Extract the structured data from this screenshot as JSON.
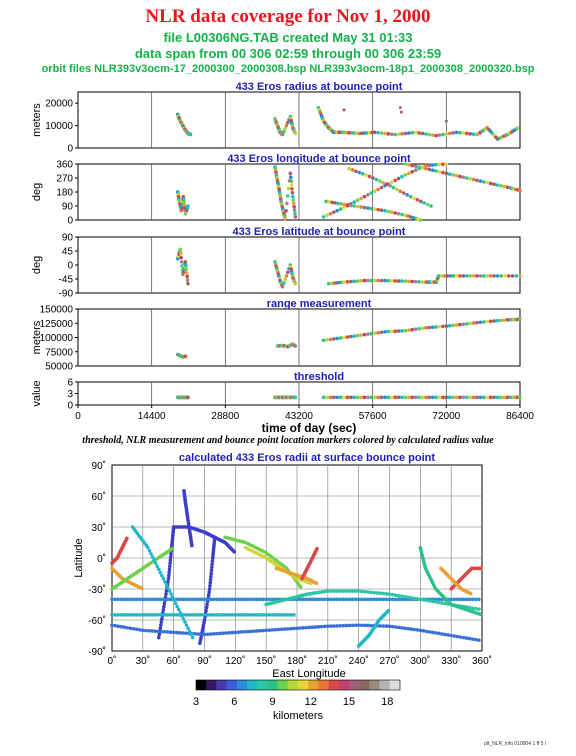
{
  "header": {
    "title": "NLR data coverage for Nov 1, 2000",
    "file_line": "file L00306NG.TAB created May 31 01:33",
    "span_line": "data span from 00 306 02:59 through 00 306 23:59",
    "orbit_line": "orbit files NLR393v3ocm-17_2000300_2000308.bsp NLR393v3ocm-18p1_2000308_2000320.bsp"
  },
  "caption": "threshold, NLR measurement and bounce point location markers colored by calculated radius value",
  "footer": "plt_NLR_info 010904 1 ff 5 l",
  "colors": {
    "title": "#e8141e",
    "subtitle": "#15b04a",
    "panel_title": "#1f1fb4"
  },
  "chart_data": [
    {
      "id": "radius",
      "type": "scatter",
      "title": "433 Eros radius at bounce point",
      "ylabel": "meters",
      "xlim": [
        0,
        86400
      ],
      "ylim": [
        0,
        25000
      ],
      "yticks": [
        "0",
        "10000",
        "20000"
      ],
      "ytick_values": [
        0,
        10000,
        20000
      ],
      "series": [
        {
          "x": [
            19500,
            20000,
            20500,
            21000,
            21500,
            22000
          ],
          "y": [
            15000,
            12000,
            10000,
            8000,
            6500,
            6000
          ]
        },
        {
          "x": [
            38500,
            39000,
            39500,
            40000,
            41500,
            42000,
            42500
          ],
          "y": [
            13000,
            10000,
            7000,
            6000,
            14000,
            9000,
            6500
          ]
        },
        {
          "x": [
            47000,
            48000,
            49000,
            50000,
            52000,
            55000,
            58000,
            62000,
            66000,
            70000,
            74000,
            78000,
            80000,
            82000,
            84000,
            86000
          ],
          "y": [
            18000,
            12000,
            9000,
            7000,
            7000,
            6500,
            7000,
            6000,
            7000,
            5500,
            7000,
            6000,
            9000,
            4000,
            6000,
            9000
          ]
        }
      ],
      "outliers": [
        {
          "x": 63000,
          "y": 18000
        },
        {
          "x": 63200,
          "y": 16000
        },
        {
          "x": 72000,
          "y": 12000
        },
        {
          "x": 52000,
          "y": 17000
        }
      ]
    },
    {
      "id": "longitude",
      "type": "scatter",
      "title": "433 Eros longitude at bounce point",
      "ylabel": "deg",
      "xlim": [
        0,
        86400
      ],
      "ylim": [
        0,
        360
      ],
      "yticks": [
        "0",
        "90",
        "180",
        "270",
        "360"
      ],
      "ytick_values": [
        0,
        90,
        180,
        270,
        360
      ],
      "series": [
        {
          "x": [
            19500,
            19800,
            20200,
            20600,
            21000,
            21500
          ],
          "y": [
            180,
            120,
            60,
            150,
            40,
            90
          ]
        },
        {
          "x": [
            38500,
            38900,
            39300,
            39700,
            40100,
            40500,
            41500,
            42000,
            42500
          ],
          "y": [
            340,
            270,
            200,
            120,
            60,
            10,
            300,
            150,
            20
          ]
        },
        {
          "x": [
            48000,
            52000,
            56000,
            60000,
            64000,
            68000,
            72000
          ],
          "y": [
            20,
            80,
            150,
            220,
            290,
            350,
            360
          ]
        },
        {
          "x": [
            48500,
            52000,
            56000,
            60000,
            64000,
            67000
          ],
          "y": [
            120,
            100,
            80,
            60,
            30,
            0
          ]
        },
        {
          "x": [
            64000,
            68000,
            72000,
            76000,
            80000,
            84000,
            86400
          ],
          "y": [
            360,
            330,
            300,
            270,
            240,
            210,
            190
          ]
        },
        {
          "x": [
            53000,
            57000,
            61000,
            65000,
            69000
          ],
          "y": [
            330,
            280,
            220,
            150,
            90
          ]
        }
      ]
    },
    {
      "id": "latitude",
      "type": "scatter",
      "title": "433 Eros latitude at bounce point",
      "ylabel": "deg",
      "xlim": [
        0,
        86400
      ],
      "ylim": [
        -90,
        90
      ],
      "yticks": [
        "-90",
        "-45",
        "0",
        "45",
        "90"
      ],
      "ytick_values": [
        -90,
        -45,
        0,
        45,
        90
      ],
      "series": [
        {
          "x": [
            19500,
            20000,
            20500,
            21000,
            21500
          ],
          "y": [
            20,
            50,
            -30,
            10,
            -60
          ]
        },
        {
          "x": [
            38500,
            39000,
            39500,
            40000,
            41500,
            42000,
            42500
          ],
          "y": [
            10,
            -20,
            -50,
            -70,
            0,
            -40,
            -60
          ]
        },
        {
          "x": [
            49000,
            52000,
            56000,
            60000,
            64000,
            68000,
            70000,
            70500,
            74000,
            78000,
            82000,
            86400
          ],
          "y": [
            -60,
            -55,
            -50,
            -50,
            -52,
            -55,
            -55,
            -35,
            -35,
            -35,
            -35,
            -35
          ]
        }
      ]
    },
    {
      "id": "range",
      "type": "scatter",
      "title": "range measurement",
      "ylabel": "meters",
      "xlim": [
        0,
        86400
      ],
      "ylim": [
        50000,
        150000
      ],
      "yticks": [
        "50000",
        "75000",
        "100000",
        "125000",
        "150000"
      ],
      "ytick_values": [
        50000,
        75000,
        100000,
        125000,
        150000
      ],
      "series": [
        {
          "x": [
            19500,
            20000,
            20500,
            21000
          ],
          "y": [
            70000,
            68000,
            66000,
            67000
          ]
        },
        {
          "x": [
            39000,
            40000,
            41000,
            42000,
            42500
          ],
          "y": [
            85000,
            86000,
            84000,
            88000,
            85000
          ]
        },
        {
          "x": [
            48000,
            52000,
            56000,
            60000,
            64000,
            68000,
            72000,
            76000,
            80000,
            84000,
            86400
          ],
          "y": [
            95000,
            100000,
            105000,
            110000,
            112000,
            117000,
            120000,
            124000,
            128000,
            131000,
            132000
          ]
        }
      ]
    },
    {
      "id": "threshold",
      "type": "scatter",
      "title": "threshold",
      "ylabel": "value",
      "xlabel": "time of day (sec)",
      "xlim": [
        0,
        86400
      ],
      "ylim": [
        0,
        6
      ],
      "yticks": [
        "0",
        "3",
        "6"
      ],
      "ytick_values": [
        0,
        3,
        6
      ],
      "xticks": [
        "0",
        "14400",
        "28800",
        "43200",
        "57600",
        "72000",
        "86400"
      ],
      "xtick_values": [
        0,
        14400,
        28800,
        43200,
        57600,
        72000,
        86400
      ],
      "series": [
        {
          "x": [
            19500,
            20000,
            20500,
            21000,
            21500
          ],
          "y": [
            2,
            2,
            2,
            2,
            2
          ]
        },
        {
          "x": [
            38500,
            39000,
            40000,
            41000,
            42000,
            42500
          ],
          "y": [
            2,
            2,
            2,
            2,
            2,
            2
          ]
        },
        {
          "x": [
            48000,
            52000,
            56000,
            60000,
            64000,
            68000,
            72000,
            76000,
            80000,
            84000,
            86400
          ],
          "y": [
            2,
            2,
            2,
            2,
            2,
            2,
            2,
            2,
            2,
            2,
            2
          ]
        }
      ]
    },
    {
      "id": "map",
      "type": "scatter",
      "title": "calculated 433 Eros radii at surface bounce point",
      "xlabel": "East Longitude",
      "ylabel": "Latitude",
      "xlim": [
        0,
        360
      ],
      "ylim": [
        -90,
        90
      ],
      "xticks": [
        "0˚",
        "30˚",
        "60˚",
        "90˚",
        "120˚",
        "150˚",
        "180˚",
        "210˚",
        "240˚",
        "270˚",
        "300˚",
        "330˚",
        "360˚"
      ],
      "xtick_values": [
        0,
        30,
        60,
        90,
        120,
        150,
        180,
        210,
        240,
        270,
        300,
        330,
        360
      ],
      "yticks": [
        "-90˚",
        "-60˚",
        "-30˚",
        "0˚",
        "30˚",
        "60˚",
        "90˚"
      ],
      "ytick_values": [
        -90,
        -60,
        -30,
        0,
        30,
        60,
        90
      ],
      "tracks": [
        {
          "color": "#3a3ec8",
          "x": [
            60,
            75,
            90,
            100,
            110,
            120
          ],
          "y": [
            30,
            30,
            25,
            20,
            15,
            5
          ]
        },
        {
          "color": "#3a3ec8",
          "x": [
            60,
            58,
            55,
            50,
            45
          ],
          "y": [
            30,
            10,
            -20,
            -50,
            -80
          ]
        },
        {
          "color": "#3a3ec8",
          "x": [
            100,
            98,
            95,
            90,
            85
          ],
          "y": [
            20,
            0,
            -30,
            -60,
            -85
          ]
        },
        {
          "color": "#2f8bd6",
          "x": [
            0,
            30,
            60,
            90,
            120,
            150,
            180,
            210,
            240,
            270,
            300,
            330,
            360
          ],
          "y": [
            -40,
            -40,
            -40,
            -40,
            -40,
            -40,
            -40,
            -40,
            -40,
            -40,
            -40,
            -40,
            -40
          ]
        },
        {
          "color": "#22b7c9",
          "x": [
            0,
            30,
            60,
            90,
            120,
            150,
            180
          ],
          "y": [
            -55,
            -55,
            -55,
            -55,
            -55,
            -55,
            -55
          ]
        },
        {
          "color": "#3a6fd8",
          "x": [
            0,
            30,
            60,
            90,
            120,
            150,
            180,
            210,
            240,
            270,
            300,
            330,
            360
          ],
          "y": [
            -65,
            -70,
            -72,
            -74,
            -72,
            -70,
            -68,
            -66,
            -65,
            -66,
            -70,
            -75,
            -80
          ]
        },
        {
          "color": "#2bc6a4",
          "x": [
            150,
            170,
            190,
            210,
            240,
            270,
            300,
            330,
            360
          ],
          "y": [
            -45,
            -40,
            -35,
            -32,
            -32,
            -35,
            -40,
            -45,
            -50
          ]
        },
        {
          "color": "#6dd14d",
          "x": [
            110,
            130,
            150,
            170,
            185
          ],
          "y": [
            20,
            15,
            5,
            -10,
            -30
          ]
        },
        {
          "color": "#d6d23a",
          "x": [
            130,
            150,
            165,
            180,
            195
          ],
          "y": [
            10,
            0,
            -10,
            -20,
            -25
          ]
        },
        {
          "color": "#e6a235",
          "x": [
            160,
            175,
            190,
            200
          ],
          "y": [
            -10,
            -15,
            -20,
            -25
          ]
        },
        {
          "color": "#d84a4a",
          "x": [
            185,
            190,
            195,
            200
          ],
          "y": [
            -20,
            -10,
            0,
            10
          ]
        },
        {
          "color": "#d84a4a",
          "x": [
            330,
            340,
            350,
            360
          ],
          "y": [
            -30,
            -20,
            -10,
            -10
          ]
        },
        {
          "color": "#e6a235",
          "x": [
            320,
            330,
            340,
            350
          ],
          "y": [
            -10,
            -20,
            -30,
            -35
          ]
        },
        {
          "color": "#2fc08a",
          "x": [
            300,
            305,
            315,
            330,
            345,
            360
          ],
          "y": [
            10,
            -10,
            -30,
            -45,
            -50,
            -55
          ]
        },
        {
          "color": "#e6a235",
          "x": [
            0,
            10,
            20,
            30
          ],
          "y": [
            -10,
            -20,
            -25,
            -30
          ]
        },
        {
          "color": "#d84a4a",
          "x": [
            0,
            5,
            10,
            15
          ],
          "y": [
            -5,
            0,
            10,
            20
          ]
        },
        {
          "color": "#6dd14d",
          "x": [
            0,
            15,
            30,
            45,
            60
          ],
          "y": [
            -30,
            -20,
            -10,
            0,
            10
          ]
        },
        {
          "color": "#22b7c9",
          "x": [
            20,
            35,
            50,
            65,
            80
          ],
          "y": [
            30,
            10,
            -20,
            -50,
            -80
          ]
        },
        {
          "color": "#3a3ec8",
          "x": [
            70,
            72,
            75,
            78
          ],
          "y": [
            65,
            50,
            30,
            10
          ]
        },
        {
          "color": "#22b7c9",
          "x": [
            240,
            250,
            260,
            270
          ],
          "y": [
            -85,
            -75,
            -60,
            -50
          ]
        }
      ]
    }
  ],
  "colorbar": {
    "label": "kilometers",
    "tick_labels": [
      "3",
      "6",
      "9",
      "12",
      "15",
      "18"
    ],
    "tick_values": [
      3,
      6,
      9,
      12,
      15,
      18
    ],
    "range": [
      3,
      19
    ],
    "colors": [
      "#000000",
      "#3a1a5e",
      "#463bb0",
      "#3a5fd6",
      "#2f8bd6",
      "#22b7c9",
      "#2bc6a4",
      "#2fc08a",
      "#6dd14d",
      "#b6d83a",
      "#e6d63a",
      "#e6a235",
      "#e67a35",
      "#d84a4a",
      "#c04070",
      "#a0607a",
      "#8a6a60",
      "#9a8a7a",
      "#b4b4b4",
      "#dcdcdc"
    ]
  }
}
